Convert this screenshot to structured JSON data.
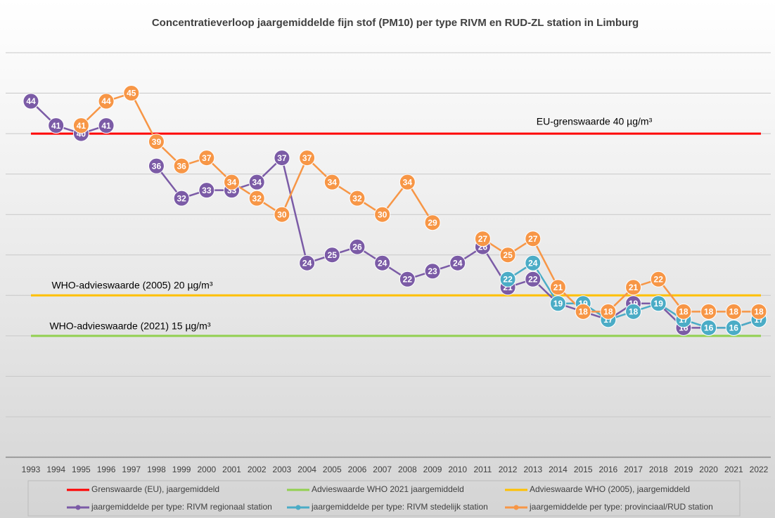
{
  "chart_data": {
    "type": "line",
    "title": "Concentratieverloop jaargemiddelde fijn stof (PM10) per type RIVM en RUD-ZL station in Limburg",
    "x": [
      1993,
      1994,
      1995,
      1996,
      1997,
      1998,
      1999,
      2000,
      2001,
      2002,
      2003,
      2004,
      2005,
      2006,
      2007,
      2008,
      2009,
      2010,
      2011,
      2012,
      2013,
      2014,
      2015,
      2016,
      2017,
      2018,
      2019,
      2020,
      2021,
      2022
    ],
    "xlim": [
      1993,
      2022
    ],
    "xticks": [
      1993,
      1994,
      1995,
      1996,
      1997,
      1998,
      1999,
      2000,
      2001,
      2002,
      2003,
      2004,
      2005,
      2006,
      2007,
      2008,
      2009,
      2010,
      2011,
      2012,
      2013,
      2014,
      2015,
      2016,
      2017,
      2018,
      2019,
      2020,
      2021,
      2022
    ],
    "ylim": [
      0,
      50
    ],
    "yticks": [
      0,
      5,
      10,
      15,
      20,
      25,
      30,
      35,
      40,
      45,
      50
    ],
    "grid": true,
    "reference_lines": [
      {
        "name": "Grenswaarde (EU), jaargemiddeld",
        "color": "#ff0000",
        "value": 40
      },
      {
        "name": "Advieswaarde WHO 2021 jaargemiddeld",
        "color": "#92d050",
        "value": 15
      },
      {
        "name": "Advieswaarde WHO (2005), jaargemiddeld",
        "color": "#ffc000",
        "value": 20
      }
    ],
    "annotations": [
      "EU-grenswaarde 40 µg/m³",
      "WHO-advieswaarde (2005) 20 µg/m³",
      "WHO-advieswaarde (2021) 15 µg/m³"
    ],
    "series": [
      {
        "name": "jaargemiddelde per type: RIVM regionaal station",
        "color": "#7b5ba6",
        "values": [
          44,
          41,
          40,
          41,
          null,
          36,
          32,
          33,
          33,
          34,
          37,
          24,
          25,
          26,
          24,
          22,
          23,
          24,
          26,
          21,
          22,
          19,
          18,
          17,
          19,
          19,
          16,
          16,
          16,
          17
        ]
      },
      {
        "name": "jaargemiddelde per type: RIVM stedelijk station",
        "color": "#4bacc6",
        "values": [
          null,
          null,
          null,
          null,
          null,
          null,
          null,
          null,
          null,
          null,
          null,
          null,
          null,
          null,
          null,
          null,
          null,
          null,
          null,
          22,
          24,
          19,
          19,
          17,
          18,
          19,
          17,
          16,
          16,
          17
        ]
      },
      {
        "name": "jaargemiddelde per type: provinciaal/RUD station",
        "color": "#f79646",
        "values": [
          null,
          null,
          41,
          44,
          45,
          39,
          36,
          37,
          34,
          32,
          30,
          37,
          34,
          32,
          30,
          34,
          29,
          null,
          27,
          25,
          27,
          21,
          18,
          18,
          21,
          22,
          18,
          18,
          18,
          18
        ]
      }
    ]
  }
}
